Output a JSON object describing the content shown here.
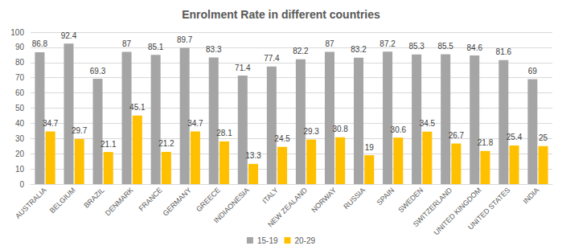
{
  "chart_data": {
    "type": "bar",
    "title": "Enrolment Rate in different countries",
    "categories": [
      "AUSTRALIA",
      "BELGIUM",
      "BRAZIL",
      "DENMARK",
      "FRANCE",
      "GERMANY",
      "GREECE",
      "INDIAONESIA",
      "ITALY",
      "NEW ZEALAND",
      "NORWAY",
      "RUSSIA",
      "SPAIN",
      "SWEDEN",
      "SWITZERLAND",
      "UNITED KINGDOM",
      "UNITED STATES",
      "INDIA"
    ],
    "series": [
      {
        "name": "15-19",
        "color": "#a5a5a5",
        "values": [
          86.8,
          92.4,
          69.3,
          87,
          85.1,
          89.7,
          83.3,
          71.4,
          77.4,
          82.2,
          87,
          83.2,
          87.2,
          85.3,
          85.5,
          84.6,
          81.6,
          69
        ]
      },
      {
        "name": "20-29",
        "color": "#ffc000",
        "values": [
          34.7,
          29.7,
          21.1,
          45.1,
          21.2,
          34.7,
          28.1,
          13.3,
          24.5,
          29.3,
          30.8,
          19,
          30.6,
          34.5,
          26.7,
          21.8,
          25.4,
          25
        ]
      }
    ],
    "ylim": [
      0,
      100
    ],
    "yticks": [
      0,
      10,
      20,
      30,
      40,
      50,
      60,
      70,
      80,
      90,
      100
    ],
    "grid": true,
    "legend": "bottom",
    "data_labels": true
  }
}
